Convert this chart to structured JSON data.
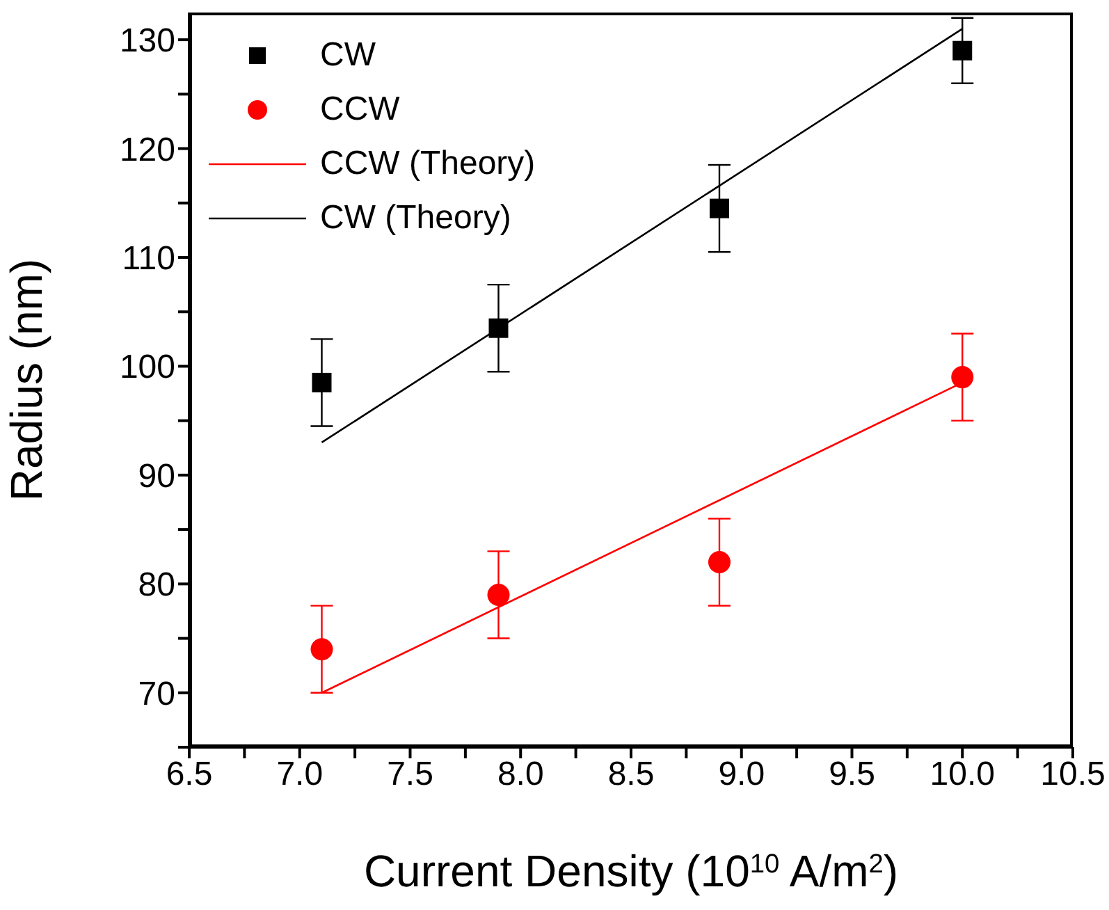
{
  "chart_data": {
    "type": "scatter",
    "xlabel": "Current Density (10$^{10}$ A/m$^{2}$)",
    "ylabel": "Radius (nm)",
    "xlim": [
      6.5,
      10.5
    ],
    "ylim": [
      65,
      132.5
    ],
    "xticks": [
      6.5,
      {
        "value": 6.75,
        "label": null
      },
      {
        "value": 7,
        "label": "7.0"
      },
      {
        "value": 7.25,
        "label": null
      },
      7.5,
      {
        "value": 7.75,
        "label": null
      },
      {
        "value": 8,
        "label": "8.0"
      },
      {
        "value": 8.25,
        "label": null
      },
      8.5,
      {
        "value": 8.75,
        "label": null
      },
      {
        "value": 9,
        "label": "9.0"
      },
      {
        "value": 9.25,
        "label": null
      },
      9.5,
      {
        "value": 9.75,
        "label": null
      },
      {
        "value": 10,
        "label": "10.0"
      },
      {
        "value": 10.25,
        "label": null
      },
      10.5
    ],
    "yticks": [
      {
        "value": 65,
        "label": null
      },
      70,
      {
        "value": 75,
        "label": null
      },
      80,
      {
        "value": 85,
        "label": null
      },
      90,
      {
        "value": 95,
        "label": null
      },
      100,
      {
        "value": 105,
        "label": null
      },
      110,
      {
        "value": 115,
        "label": null
      },
      120,
      {
        "value": 125,
        "label": null
      },
      130
    ],
    "grid": false,
    "legend": "top left",
    "series": [
      {
        "name": "CW",
        "marker": "square",
        "color": "#000000",
        "x": [
          7.1,
          7.9,
          8.9,
          10
        ],
        "values": [
          98.5,
          103.5,
          114.5,
          129
        ],
        "errors": [
          4,
          4,
          4,
          3
        ]
      },
      {
        "name": "CCW",
        "marker": "circle",
        "color": "#ff0000",
        "x": [
          7.1,
          7.9,
          8.9,
          10
        ],
        "values": [
          74,
          79,
          82,
          99
        ],
        "errors": [
          4,
          4,
          4,
          4
        ]
      },
      {
        "name": "CCW (Theory)",
        "type": "line",
        "marker": "none",
        "line_style": "solid",
        "color": "#ff0000",
        "x": [
          7.1,
          10
        ],
        "values": [
          70,
          98.5
        ]
      },
      {
        "name": "CW (Theory)",
        "type": "line",
        "marker": "none",
        "line_style": "solid",
        "color": "#000000",
        "x": [
          7.1,
          10
        ],
        "values": [
          93,
          131
        ]
      }
    ]
  }
}
